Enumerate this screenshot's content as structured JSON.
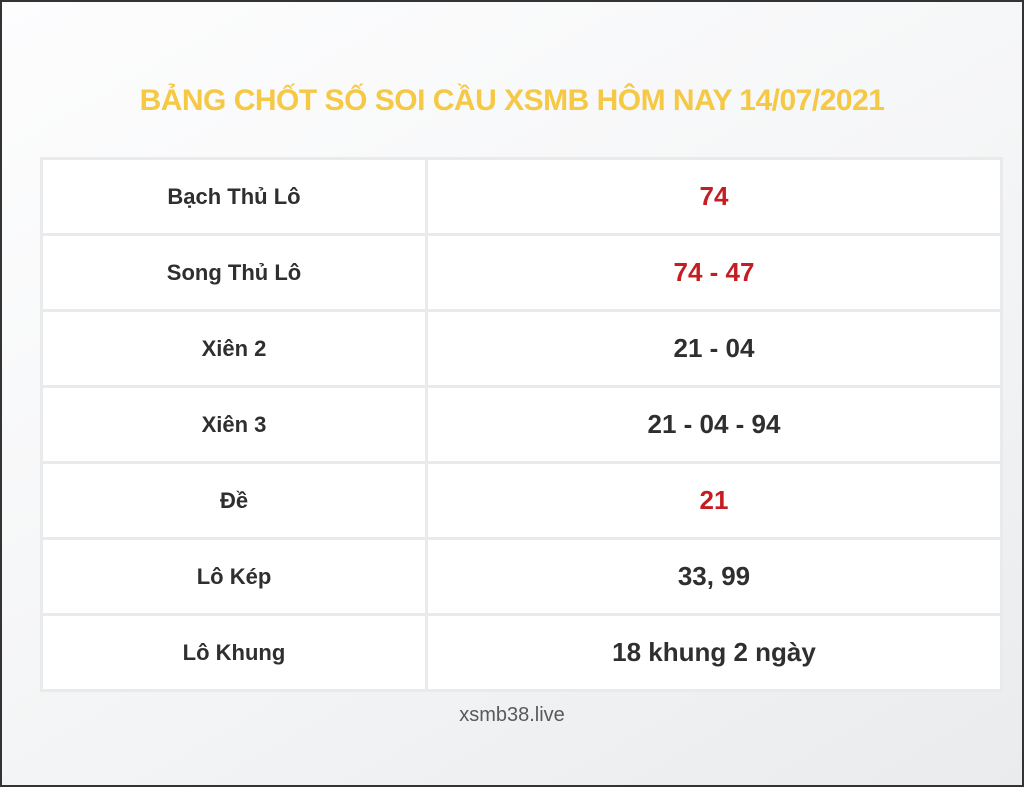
{
  "title": "BẢNG CHỐT SỐ SOI CẦU XSMB HÔM NAY 14/07/2021",
  "footer": "xsmb38.live",
  "colors": {
    "title_yellow": "#F5C845",
    "highlight_red": "#C41E23",
    "text_dark": "#2F2F2F",
    "footer_gray": "#58595B",
    "cell_border": "#E9EAEB",
    "frame_border": "#333333"
  },
  "table": {
    "rows": [
      {
        "label": "Bạch Thủ Lô",
        "value": "74",
        "highlight": true
      },
      {
        "label": "Song Thủ Lô",
        "value": "74 - 47",
        "highlight": true
      },
      {
        "label": "Xiên 2",
        "value": "21 - 04",
        "highlight": false
      },
      {
        "label": "Xiên 3",
        "value": "21 - 04 - 94",
        "highlight": false
      },
      {
        "label": "Đề",
        "value": "21",
        "highlight": true
      },
      {
        "label": "Lô Kép",
        "value": "33, 99",
        "highlight": false
      },
      {
        "label": "Lô Khung",
        "value": "18 khung 2 ngày",
        "highlight": false
      }
    ]
  }
}
